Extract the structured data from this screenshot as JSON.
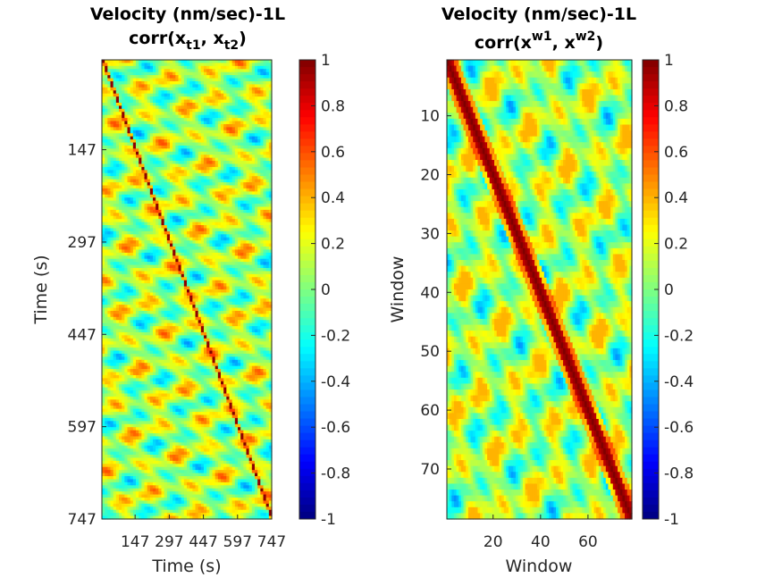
{
  "chart_data": [
    {
      "type": "heatmap",
      "title": "Velocity (nm/sec)-1L",
      "subtitle": {
        "prefix": "corr(x",
        "sub1": "t1",
        "mid": ", x",
        "sub2": "t2",
        "suffix": ")"
      },
      "xlabel": "Time (s)",
      "ylabel": "Time (s)",
      "xticks": [
        "147",
        "297",
        "447",
        "597",
        "747"
      ],
      "yticks": [
        "147",
        "297",
        "447",
        "597",
        "747"
      ],
      "tick_values": [
        147,
        297,
        447,
        597,
        747
      ],
      "range": [
        1,
        747
      ],
      "matrix_size": 747,
      "diagonal_value": 1,
      "offdiag_range": [
        -0.8,
        0.6
      ],
      "colorbar": {
        "min": -1,
        "max": 1,
        "ticks": [
          "-1",
          "-0.8",
          "-0.6",
          "-0.4",
          "-0.2",
          "0",
          "0.2",
          "0.4",
          "0.6",
          "0.8",
          "1"
        ]
      },
      "colormap": "jet"
    },
    {
      "type": "heatmap",
      "title": "Velocity (nm/sec)-1L",
      "subtitle": {
        "prefix": "corr(x",
        "sup1": "w1",
        "mid": ", x",
        "sup2": "w2",
        "suffix": ")"
      },
      "xlabel": "Window",
      "ylabel": "Window",
      "xticks": [
        "20",
        "40",
        "60"
      ],
      "yticks": [
        "10",
        "20",
        "30",
        "40",
        "50",
        "60",
        "70"
      ],
      "matrix_size": 78,
      "diagonal_value": 1,
      "offdiag_range": [
        -0.5,
        0.4
      ],
      "colorbar": {
        "min": -1,
        "max": 1,
        "ticks": [
          "-1",
          "-0.8",
          "-0.6",
          "-0.4",
          "-0.2",
          "0",
          "0.2",
          "0.4",
          "0.6",
          "0.8",
          "1"
        ]
      },
      "colormap": "jet"
    }
  ]
}
